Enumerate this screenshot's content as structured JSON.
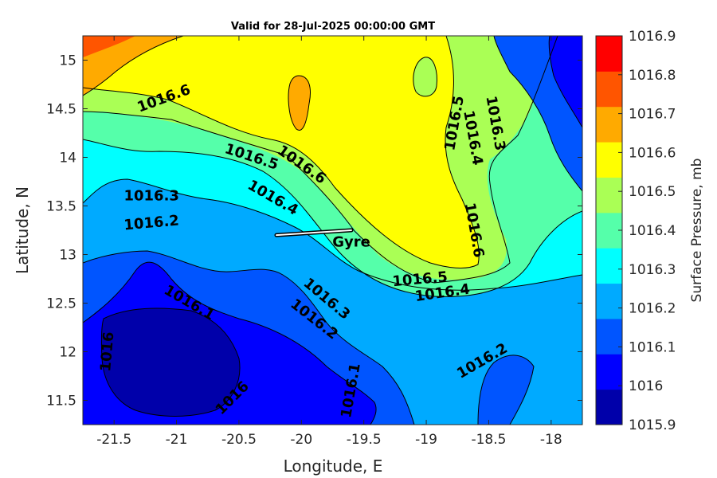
{
  "chart_data": {
    "type": "contourf",
    "title": "Valid for 28-Jul-2025 00:00:00 GMT",
    "xlabel": "Longitude, E",
    "ylabel": "Latitude, N",
    "xlim": [
      -21.75,
      -17.75
    ],
    "ylim": [
      11.25,
      15.25
    ],
    "xticks": [
      -21.5,
      -21,
      -20.5,
      -20,
      -19.5,
      -19,
      -18.5,
      -18
    ],
    "yticks": [
      11.5,
      12,
      12.5,
      13,
      13.5,
      14,
      14.5,
      15
    ],
    "colorbar": {
      "label": "Surface Pressure, mb",
      "levels": [
        1015.9,
        1016,
        1016.1,
        1016.2,
        1016.3,
        1016.4,
        1016.5,
        1016.6,
        1016.7,
        1016.8,
        1016.9
      ],
      "colors": [
        "#0000aa",
        "#0000ff",
        "#0055ff",
        "#00aaff",
        "#00ffff",
        "#55ffaa",
        "#aaff55",
        "#ffff00",
        "#ffaa00",
        "#ff5500",
        "#ff0000"
      ]
    },
    "contour_labels": [
      {
        "text": "1016.6",
        "lon": -21.1,
        "lat": 14.6,
        "angle": -20
      },
      {
        "text": "1016.5",
        "lon": -20.4,
        "lat": 14.0,
        "angle": 18
      },
      {
        "text": "1016.6",
        "lon": -20.0,
        "lat": 13.92,
        "angle": 35
      },
      {
        "text": "1016.4",
        "lon": -20.23,
        "lat": 13.58,
        "angle": 30
      },
      {
        "text": "1016.3",
        "lon": -21.2,
        "lat": 13.6,
        "angle": 0
      },
      {
        "text": "1016.2",
        "lon": -21.2,
        "lat": 13.32,
        "angle": -5
      },
      {
        "text": "1016.1",
        "lon": -20.9,
        "lat": 12.5,
        "angle": 30
      },
      {
        "text": "1016",
        "lon": -21.55,
        "lat": 12.0,
        "angle": -85
      },
      {
        "text": "1016",
        "lon": -20.55,
        "lat": 11.52,
        "angle": -45
      },
      {
        "text": "1016.1",
        "lon": -19.6,
        "lat": 11.6,
        "angle": -80
      },
      {
        "text": "1016.3",
        "lon": -19.8,
        "lat": 12.54,
        "angle": 40
      },
      {
        "text": "1016.2",
        "lon": -19.9,
        "lat": 12.33,
        "angle": 38
      },
      {
        "text": "1016.5",
        "lon": -18.77,
        "lat": 14.35,
        "angle": -80
      },
      {
        "text": "1016.4",
        "lon": -18.63,
        "lat": 14.2,
        "angle": 80
      },
      {
        "text": "1016.3",
        "lon": -18.45,
        "lat": 14.35,
        "angle": 80
      },
      {
        "text": "1016.6",
        "lon": -18.62,
        "lat": 13.25,
        "angle": 80
      },
      {
        "text": "1016.5",
        "lon": -19.05,
        "lat": 12.74,
        "angle": -5
      },
      {
        "text": "1016.4",
        "lon": -18.87,
        "lat": 12.6,
        "angle": -8
      },
      {
        "text": "1016.2",
        "lon": -18.55,
        "lat": 11.9,
        "angle": -30
      }
    ],
    "annotations": [
      {
        "text": "Gyre",
        "lon": -19.6,
        "lat": 13.08,
        "track": [
          [
            -20.2,
            13.2
          ],
          [
            -19.6,
            13.25
          ]
        ]
      }
    ]
  }
}
